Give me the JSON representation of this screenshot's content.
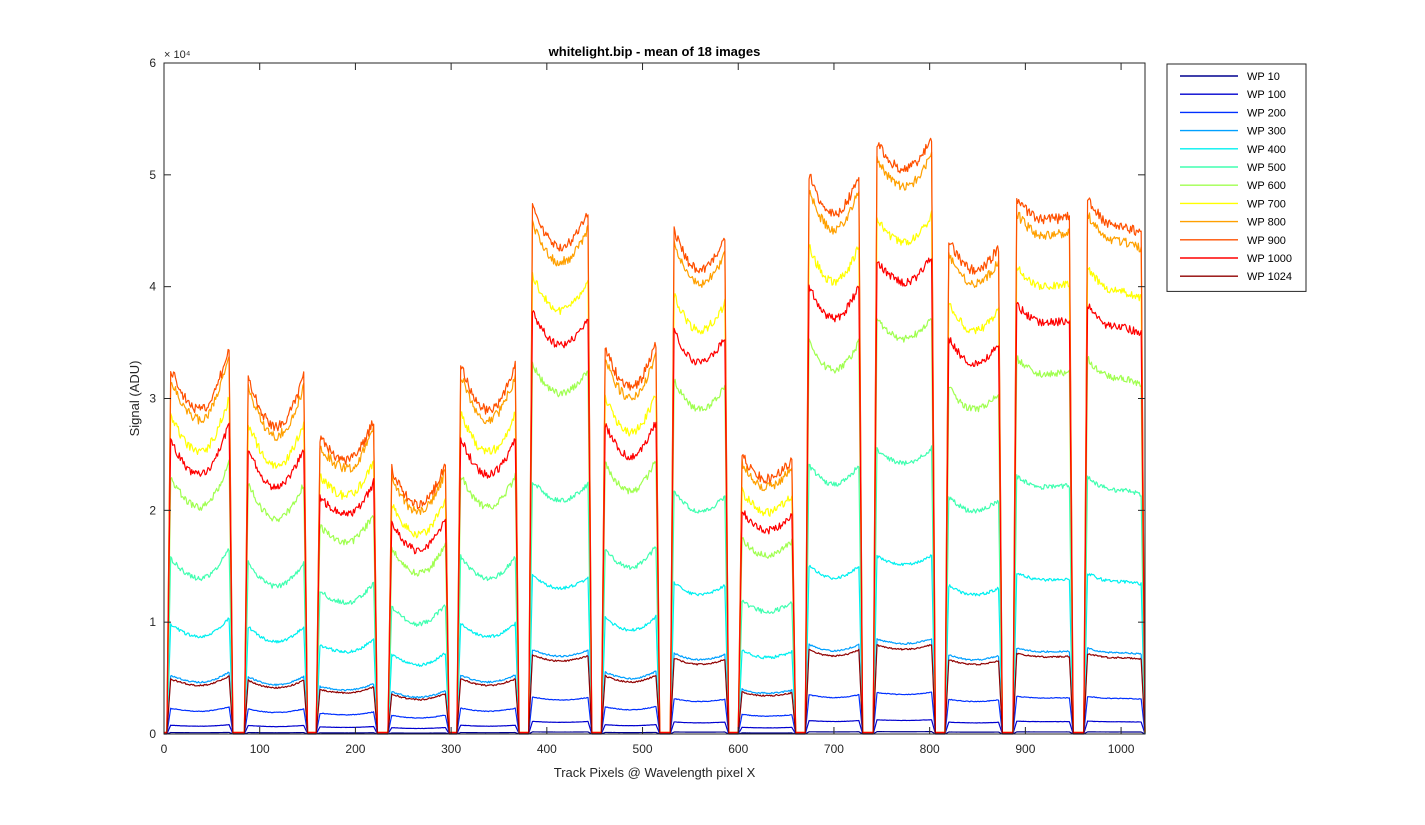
{
  "chart_data": {
    "type": "line",
    "title": "whitelight.bip - mean of 18 images",
    "xlabel": "Track Pixels @ Wavelength pixel X",
    "ylabel": "Signal (ADU)",
    "xlim": [
      0,
      1025
    ],
    "ylim": [
      0,
      60000
    ],
    "y_exponent_label": "× 10⁴",
    "x_ticks": [
      0,
      100,
      200,
      300,
      400,
      500,
      600,
      700,
      800,
      900,
      1000
    ],
    "x_tick_labels": [
      "0",
      "100",
      "200",
      "300",
      "400",
      "500",
      "600",
      "700",
      "800",
      "900",
      "1000"
    ],
    "y_ticks": [
      0,
      10000,
      20000,
      30000,
      40000,
      50000,
      60000
    ],
    "y_tick_labels": [
      "0",
      "1",
      "2",
      "3",
      "4",
      "5",
      "6"
    ],
    "grid": false,
    "legend_position": "outside-top-right",
    "segments": [
      {
        "start": 3,
        "end": 72,
        "left": 33.5,
        "center": 29.0,
        "right": 35.8
      },
      {
        "start": 84,
        "end": 150,
        "left": 33.0,
        "center": 27.5,
        "right": 33.0
      },
      {
        "start": 159,
        "end": 223,
        "left": 27.0,
        "center": 24.5,
        "right": 29.0
      },
      {
        "start": 234,
        "end": 298,
        "left": 24.5,
        "center": 20.5,
        "right": 25.0
      },
      {
        "start": 306,
        "end": 371,
        "left": 34.0,
        "center": 29.0,
        "right": 33.8
      },
      {
        "start": 381,
        "end": 447,
        "left": 48.0,
        "center": 43.5,
        "right": 47.3
      },
      {
        "start": 457,
        "end": 518,
        "left": 35.5,
        "center": 31.0,
        "right": 36.0
      },
      {
        "start": 529,
        "end": 590,
        "left": 46.0,
        "center": 41.5,
        "right": 45.0
      },
      {
        "start": 600,
        "end": 660,
        "left": 25.5,
        "center": 22.8,
        "right": 25.0
      },
      {
        "start": 670,
        "end": 730,
        "left": 51.0,
        "center": 46.5,
        "right": 51.0
      },
      {
        "start": 741,
        "end": 806,
        "left": 53.5,
        "center": 50.5,
        "right": 54.0
      },
      {
        "start": 816,
        "end": 876,
        "left": 45.0,
        "center": 41.5,
        "right": 44.0
      },
      {
        "start": 887,
        "end": 950,
        "left": 48.5,
        "center": 46.0,
        "right": 46.3
      },
      {
        "start": 961,
        "end": 1025,
        "left": 48.5,
        "center": 45.5,
        "right": 44.5
      }
    ],
    "series": [
      {
        "name": "WP 10",
        "color": "#00008f",
        "fraction": 0.004
      },
      {
        "name": "WP 100",
        "color": "#0000cf",
        "fraction": 0.024
      },
      {
        "name": "WP 200",
        "color": "#0030ff",
        "fraction": 0.07
      },
      {
        "name": "WP 300",
        "color": "#00a0ff",
        "fraction": 0.16
      },
      {
        "name": "WP 400",
        "color": "#00f0f0",
        "fraction": 0.3
      },
      {
        "name": "WP 500",
        "color": "#40ffb0",
        "fraction": 0.48
      },
      {
        "name": "WP 600",
        "color": "#a0ff50",
        "fraction": 0.7
      },
      {
        "name": "WP 700",
        "color": "#ffff00",
        "fraction": 0.87
      },
      {
        "name": "WP 800",
        "color": "#ffa000",
        "fraction": 0.97
      },
      {
        "name": "WP 900",
        "color": "#ff5000",
        "fraction": 1.0
      },
      {
        "name": "WP 1000",
        "color": "#ff0000",
        "fraction": 0.8
      },
      {
        "name": "WP 1024",
        "color": "#900000",
        "fraction": 0.15
      }
    ]
  }
}
